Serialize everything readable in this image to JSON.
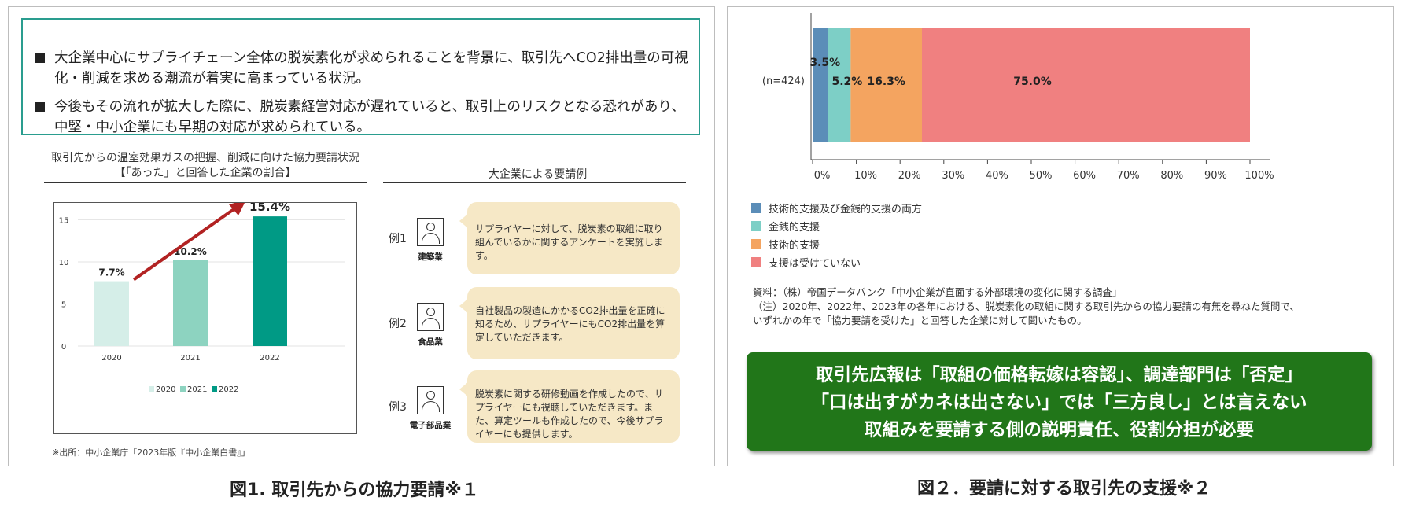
{
  "figure1": {
    "caption": "図1.  取引先からの協力要請※１",
    "bullets": [
      "大企業中心にサプライチェーン全体の脱炭素化が求められることを背景に、取引先へCO2排出量の可視化・削減を求める潮流が着実に高まっている状況。",
      "今後もその流れが拡大した際に、脱炭素経営対応が遅れていると、取引上のリスクとなる恐れがあり、中堅・中小企業にも早期の対応が求められている。"
    ],
    "chart_title_line1": "取引先からの温室効果ガスの把握、削減に向けた協力要請状況",
    "chart_title_line2": "【「あった」と回答した企業の割合】",
    "examples_title": "大企業による要請例",
    "examples": [
      {
        "label": "例1",
        "industry": "建築業",
        "text": "サプライヤーに対して、脱炭素の取組に取り組んでいるかに関するアンケートを実施します。"
      },
      {
        "label": "例2",
        "industry": "食品業",
        "text": "自社製品の製造にかかるCO2排出量を正確に知るため、サプライヤーにもCO2排出量を算定していただきます。"
      },
      {
        "label": "例3",
        "industry": "電子部品業",
        "text": "脱炭素に関する研修動画を作成したので、サプライヤーにも視聴していただきます。また、算定ツールも作成したので、今後サプライヤーにも提供します。"
      }
    ],
    "source": "※出所：中小企業庁「2023年版『中小企業白書』」"
  },
  "figure2": {
    "caption": "図２．要請に対する取引先の支援※２",
    "legend": [
      {
        "name": "技術的支援及び金銭的支援の両方",
        "color": "#5b8db8"
      },
      {
        "name": "金銭的支援",
        "color": "#7dcfc6"
      },
      {
        "name": "技術的支援",
        "color": "#f4a460"
      },
      {
        "name": "支援は受けていない",
        "color": "#f08080"
      }
    ],
    "notes": [
      "資料：（株）帝国データバンク「中小企業が直面する外部環境の変化に関する調査」",
      "（注）2020年、2022年、2023年の各年における、脱炭素化の取組に関する取引先からの協力要請の有無を尋ねた質問で、",
      "いずれかの年で「協力要請を受けた」と回答した企業に対して聞いたもの。"
    ],
    "message": [
      "取引先広報は「取組の価格転嫁は容認」、調達部門は「否定」",
      "「口は出すがカネは出さない」では「三方良し」とは言えない",
      "取組みを要請する側の説明責任、役割分担が必要"
    ]
  },
  "chart_data": [
    {
      "type": "bar",
      "categories": [
        "2020",
        "2021",
        "2022"
      ],
      "values": [
        7.7,
        10.2,
        15.4
      ],
      "data_labels": [
        "7.7%",
        "10.2%",
        "15.4%"
      ],
      "colors": [
        "#d5eee8",
        "#8dd3c0",
        "#009a85"
      ],
      "legend": [
        "2020",
        "2021",
        "2022"
      ],
      "legend_position": "bottom",
      "ylim": [
        0,
        17
      ],
      "yticks": [
        0,
        5,
        10,
        15
      ],
      "trend_arrow": true
    },
    {
      "type": "bar",
      "orientation": "horizontal",
      "stacked": true,
      "categories": [
        "(n=424)"
      ],
      "series": [
        {
          "name": "技術的支援及び金銭的支援の両方",
          "values": [
            3.5
          ],
          "label": "3.5%"
        },
        {
          "name": "金銭的支援",
          "values": [
            5.2
          ],
          "label": "5.2%"
        },
        {
          "name": "技術的支援",
          "values": [
            16.3
          ],
          "label": "16.3%"
        },
        {
          "name": "支援は受けていない",
          "values": [
            75.0
          ],
          "label": "75.0%"
        }
      ],
      "xlim": [
        0,
        100
      ],
      "xtick_labels": [
        "0%",
        "10%",
        "20%",
        "30%",
        "40%",
        "50%",
        "60%",
        "70%",
        "80%",
        "90%",
        "100%"
      ],
      "legend_position": "bottom-left"
    }
  ]
}
